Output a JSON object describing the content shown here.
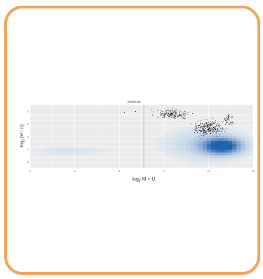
{
  "chart_data": {
    "type": "heatmap",
    "title": "cloudMLplot",
    "xlabel_prefix": "log",
    "xlabel_sub": "2",
    "xlabel_body": "M + U",
    "ylabel_prefix": "log",
    "ylabel_sub": "2",
    "ylabel_body": "(M / U)",
    "xlim": [
      0,
      15
    ],
    "ylim": [
      -3,
      3
    ],
    "xticks": [
      "0",
      "3",
      "6",
      "9",
      "12",
      "15"
    ],
    "yticks": [
      "2",
      "1",
      "0",
      "-1",
      "-2"
    ],
    "grid": true,
    "colors": {
      "panel": "#ebebeb",
      "grid": "#ffffff",
      "border": "#f0a659",
      "density_low": "#e6f0fa",
      "density_high": "#1f63b0",
      "points": "#000000"
    }
  }
}
